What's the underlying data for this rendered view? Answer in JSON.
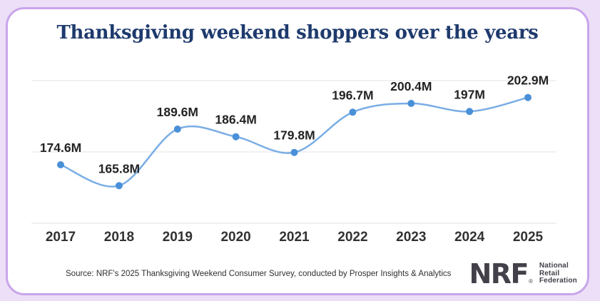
{
  "title": "Thanksgiving weekend shoppers over the years",
  "chart_data": {
    "type": "line",
    "title": "Thanksgiving weekend shoppers over the years",
    "x": [
      2017,
      2018,
      2019,
      2020,
      2021,
      2022,
      2023,
      2024,
      2025
    ],
    "categories": [
      "2017",
      "2018",
      "2019",
      "2020",
      "2021",
      "2022",
      "2023",
      "2024",
      "2025"
    ],
    "values": [
      174.6,
      165.8,
      189.6,
      186.4,
      179.8,
      196.7,
      200.4,
      197,
      202.9
    ],
    "point_labels": [
      "174.6M",
      "165.8M",
      "189.6M",
      "186.4M",
      "179.8M",
      "196.7M",
      "200.4M",
      "197M",
      "202.9M"
    ],
    "xlabel": "",
    "ylabel": "",
    "ylim": [
      150,
      210
    ],
    "y_gridlines": [
      150,
      180,
      210
    ],
    "grid": "horizontal-only, no y tick labels",
    "legend": "none",
    "line_color": "#79ade5",
    "point_color": "#4a90d8",
    "grid_color": "#e3e3e6",
    "label_color": "#232325",
    "axis_label_color": "#323234",
    "title_color": "#1e3a6d",
    "card_border_color": "#c9a5ea",
    "page_background": "#ecdff7"
  },
  "footer": {
    "source": "Source: NRF's 2025 Thanksgiving Weekend Consumer Survey, conducted by Prosper Insights & Analytics"
  },
  "logo": {
    "wordmark": "NRF",
    "registered": "®",
    "lines": [
      "National",
      "Retail",
      "Federation"
    ]
  }
}
